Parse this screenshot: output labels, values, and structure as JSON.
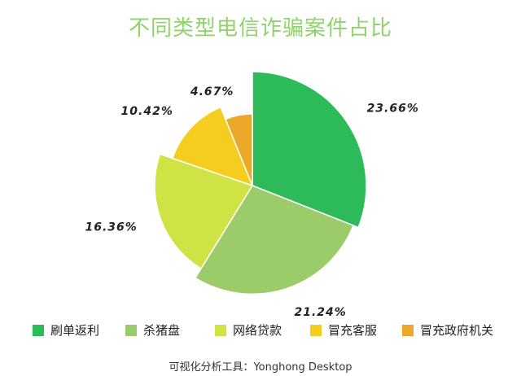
{
  "chart_data": {
    "type": "pie",
    "title": "不同类型电信诈骗案件占比",
    "categories": [
      "刷单返利",
      "杀猪盘",
      "网络贷款",
      "冒充客服",
      "冒充政府机关"
    ],
    "values": [
      23.66,
      21.24,
      16.36,
      10.42,
      4.67
    ],
    "value_labels": [
      "23.66%",
      "21.24%",
      "16.36%",
      "10.42%",
      "4.67%"
    ],
    "colors": [
      "#2dbb5a",
      "#9ccc6a",
      "#cfe444",
      "#f4cd1e",
      "#eba829"
    ],
    "legend_position": "bottom"
  },
  "footer": "可视化分析工具：Yonghong Desktop"
}
